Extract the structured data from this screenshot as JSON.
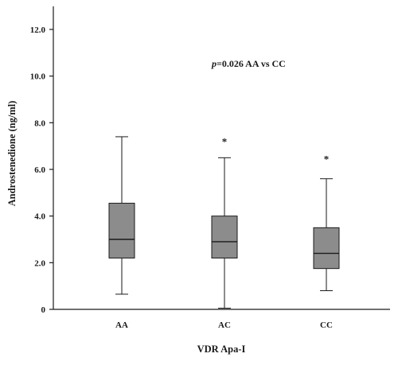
{
  "chart_data": {
    "type": "boxplot",
    "xlabel": "VDR Apa-I",
    "ylabel": "Androstenedione (ng/ml)",
    "ylim": [
      0,
      12.0
    ],
    "y_ticks": [
      "0",
      "2.0",
      "4.0",
      "6.0",
      "8.0",
      "10.0",
      "12.0"
    ],
    "y_tick_values": [
      0,
      2,
      4,
      6,
      8,
      10,
      12
    ],
    "categories": [
      "AA",
      "AC",
      "CC"
    ],
    "boxes": [
      {
        "category": "AA",
        "min": 0.65,
        "q1": 2.2,
        "median": 3.0,
        "q3": 4.55,
        "max": 7.4,
        "outlier_marker": ""
      },
      {
        "category": "AC",
        "min": 0.05,
        "q1": 2.2,
        "median": 2.9,
        "q3": 4.0,
        "max": 6.5,
        "outlier_marker": "*",
        "outlier_value": 7.25
      },
      {
        "category": "CC",
        "min": 0.8,
        "q1": 1.75,
        "median": 2.4,
        "q3": 3.5,
        "max": 5.6,
        "outlier_marker": "*",
        "outlier_value": 6.5
      }
    ],
    "annotation": {
      "p_label": "p",
      "text": "=0.026 AA vs CC"
    },
    "box_fill": "#8c8c8c",
    "grid": false,
    "legend": "none"
  }
}
